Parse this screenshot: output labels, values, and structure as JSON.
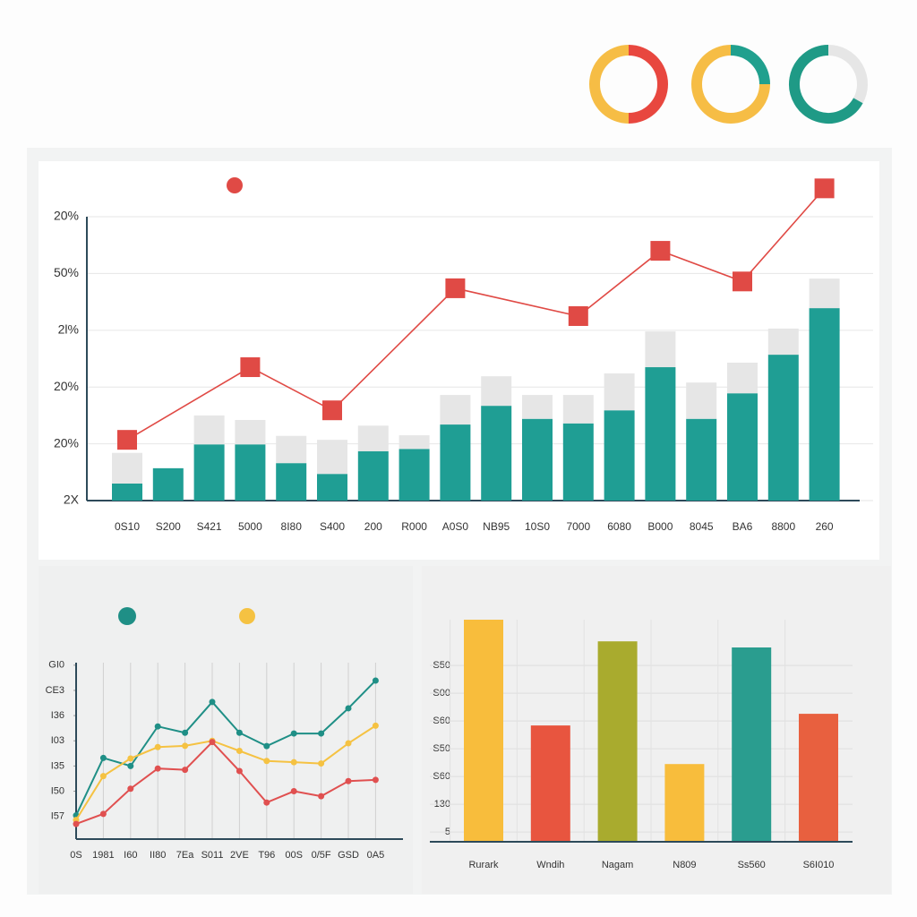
{
  "chart_data": [
    {
      "type": "pie",
      "values": [
        50,
        50
      ],
      "colors": [
        "#e8473f",
        "#f6bd45"
      ]
    },
    {
      "type": "pie",
      "values": [
        25,
        75
      ],
      "colors": [
        "#20a08e",
        "#f6bd45"
      ]
    },
    {
      "type": "pie",
      "values": [
        33,
        67
      ],
      "colors": [
        "#e6e6e6",
        "#1f9a86"
      ]
    },
    {
      "type": "bar",
      "categories": [
        "0S10",
        "S200",
        "S421",
        "5000",
        "8I80",
        "S400",
        "200",
        "R000",
        "A0S0",
        "NB95",
        "10S0",
        "7000",
        "6080",
        "B000",
        "8045",
        "BA6",
        "8800",
        "260"
      ],
      "ylim": [
        0,
        5.6
      ],
      "yticks": [
        {
          "value": 0,
          "label": "2X"
        },
        {
          "value": 1,
          "label": "20%"
        },
        {
          "value": 2,
          "label": "20%"
        },
        {
          "value": 3,
          "label": "2Ɩ%"
        },
        {
          "value": 4,
          "label": "50%"
        },
        {
          "value": 5,
          "label": "20%"
        }
      ],
      "grid": true,
      "series": [
        {
          "color": "#1f9e94",
          "values": [
            0.3,
            0.57,
            0.99,
            0.99,
            0.66,
            0.47,
            0.87,
            0.91,
            1.34,
            1.67,
            1.44,
            1.36,
            1.59,
            2.35,
            1.44,
            1.89,
            2.57,
            3.39
          ]
        },
        {
          "color": "#e6e6e6",
          "values": [
            0.54,
            0,
            0.51,
            0.43,
            0.48,
            0.6,
            0.45,
            0.24,
            0.52,
            0.52,
            0.42,
            0.5,
            0.65,
            0.63,
            0.64,
            0.54,
            0.46,
            0.52
          ]
        }
      ],
      "line": {
        "color": "#e04a45",
        "x": [
          "0S10",
          "5000",
          "S400",
          "A0S0",
          "7000",
          "B000",
          "BA6",
          "260"
        ],
        "values": [
          1.07,
          2.35,
          1.59,
          3.74,
          3.25,
          4.4,
          3.86,
          5.5
        ]
      }
    },
    {
      "type": "line",
      "categories": [
        "0S",
        "1981",
        "I60",
        "II80",
        "7Ea",
        "S011",
        "2VE",
        "T96",
        "00S",
        "0/5F",
        "GSD",
        "0A5"
      ],
      "ylim": [
        -0.9,
        6.1
      ],
      "yticks": [
        {
          "value": 0,
          "label": "I57"
        },
        {
          "value": 1,
          "label": "I50"
        },
        {
          "value": 2,
          "label": "I35"
        },
        {
          "value": 3,
          "label": "I03"
        },
        {
          "value": 4,
          "label": "I36"
        },
        {
          "value": 5,
          "label": "CE3"
        },
        {
          "value": 6,
          "label": "GI0"
        }
      ],
      "grid": true,
      "series": [
        {
          "color": "#1f8f86",
          "values": [
            0.04,
            2.32,
            2.0,
            3.57,
            3.32,
            4.54,
            3.32,
            2.79,
            3.29,
            3.29,
            4.29,
            5.39
          ]
        },
        {
          "color": "#f5c242",
          "values": [
            -0.14,
            1.6,
            2.3,
            2.75,
            2.8,
            3.0,
            2.6,
            2.2,
            2.15,
            2.1,
            2.9,
            3.6
          ]
        },
        {
          "color": "#e05050",
          "values": [
            -0.3,
            0.1,
            1.1,
            1.9,
            1.85,
            2.95,
            1.8,
            0.55,
            1.0,
            0.8,
            1.4,
            1.45
          ]
        }
      ]
    },
    {
      "type": "bar",
      "categories": [
        "Rurark",
        "Wndih",
        "Nagam",
        "N809",
        "Ss560",
        "S6I010"
      ],
      "ylim": [
        -0.35,
        7.65
      ],
      "yticks": [
        {
          "value": 0,
          "label": "5"
        },
        {
          "value": 1,
          "label": "130"
        },
        {
          "value": 2,
          "label": "S60"
        },
        {
          "value": 3,
          "label": "S50"
        },
        {
          "value": 4,
          "label": "S60"
        },
        {
          "value": 5,
          "label": "S00"
        },
        {
          "value": 6,
          "label": "S50"
        }
      ],
      "grid": true,
      "values": [
        7.65,
        3.84,
        6.87,
        2.45,
        6.65,
        4.26
      ],
      "colors": [
        "#f8bd3c",
        "#e8553f",
        "#a9ab2e",
        "#f8bd3c",
        "#2a9d8f",
        "#e8603f"
      ]
    }
  ]
}
